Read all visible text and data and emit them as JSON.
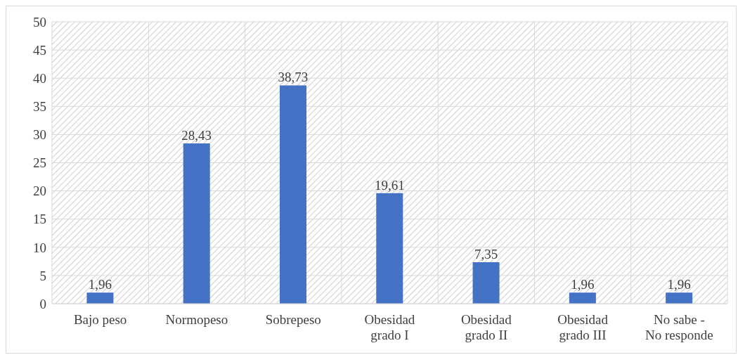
{
  "chart_data": {
    "type": "bar",
    "categories": [
      "Bajo peso",
      "Normopeso",
      "Sobrepeso",
      "Obesidad grado I",
      "Obesidad grado II",
      "Obesidad grado III",
      "No sabe - No responde"
    ],
    "values": [
      1.96,
      28.43,
      38.73,
      19.61,
      7.35,
      1.96,
      1.96
    ],
    "value_labels": [
      "1,96",
      "28,43",
      "38,73",
      "19,61",
      "7,35",
      "1,96",
      "1,96"
    ],
    "color": "#4472c4",
    "ylim": [
      0,
      50
    ],
    "yticks": [
      0,
      5,
      10,
      15,
      20,
      25,
      30,
      35,
      40,
      45,
      50
    ],
    "grid": true
  }
}
